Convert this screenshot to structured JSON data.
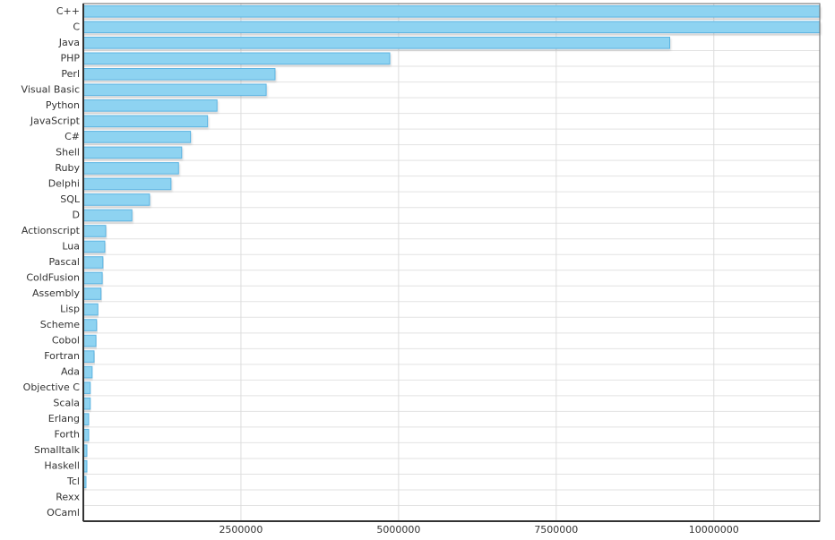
{
  "chart_data": {
    "type": "bar",
    "orientation": "horizontal",
    "categories": [
      "C++",
      "C",
      "Java",
      "PHP",
      "Perl",
      "Visual Basic",
      "Python",
      "JavaScript",
      "C#",
      "Shell",
      "Ruby",
      "Delphi",
      "SQL",
      "D",
      "Actionscript",
      "Lua",
      "Pascal",
      "ColdFusion",
      "Assembly",
      "Lisp",
      "Scheme",
      "Cobol",
      "Fortran",
      "Ada",
      "Objective C",
      "Scala",
      "Erlang",
      "Forth",
      "Smalltalk",
      "Haskell",
      "Tcl",
      "Rexx",
      "OCaml"
    ],
    "values": [
      11680000,
      11680000,
      9300000,
      4860000,
      3040000,
      2900000,
      2120000,
      1970000,
      1700000,
      1560000,
      1510000,
      1390000,
      1050000,
      770000,
      355000,
      340000,
      310000,
      300000,
      280000,
      230000,
      210000,
      200000,
      170000,
      140000,
      110000,
      110000,
      85000,
      85000,
      57000,
      57000,
      43000,
      7000,
      3000
    ],
    "color": "#8ed3f1",
    "xlim": [
      0,
      11680000
    ],
    "xticks": [
      2500000,
      5000000,
      7500000,
      10000000
    ],
    "grid": true
  }
}
